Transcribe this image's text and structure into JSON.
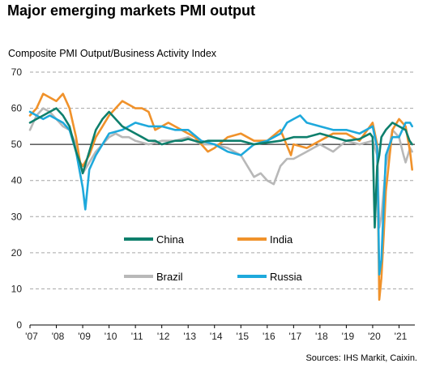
{
  "title": "Major emerging markets PMI output",
  "chart_data": {
    "type": "line",
    "title": "Major emerging markets PMI output",
    "ylabel": "Composite PMI Output/Business Activity Index",
    "source": "Sources: IHS Markit, Caixin.",
    "ylim": [
      0,
      70
    ],
    "xlim": [
      2007.0,
      2021.6
    ],
    "yticks": [
      0,
      10,
      20,
      30,
      40,
      50,
      60,
      70
    ],
    "xticks": [
      {
        "value": 2007,
        "label": "'07"
      },
      {
        "value": 2008,
        "label": "'08"
      },
      {
        "value": 2009,
        "label": "'09"
      },
      {
        "value": 2010,
        "label": "'10"
      },
      {
        "value": 2011,
        "label": "'11"
      },
      {
        "value": 2012,
        "label": "'12"
      },
      {
        "value": 2013,
        "label": "'13"
      },
      {
        "value": 2014,
        "label": "'14"
      },
      {
        "value": 2015,
        "label": "'15"
      },
      {
        "value": 2016,
        "label": "'16"
      },
      {
        "value": 2017,
        "label": "'17"
      },
      {
        "value": 2018,
        "label": "'18"
      },
      {
        "value": 2019,
        "label": "'19"
      },
      {
        "value": 2020,
        "label": "'20"
      },
      {
        "value": 2021,
        "label": "'21"
      }
    ],
    "reference_line": 50,
    "grid": "horizontal dashed",
    "series": [
      {
        "name": "China",
        "color": "#0e7f6c",
        "x": [
          2007.0,
          2007.25,
          2007.5,
          2007.75,
          2008.0,
          2008.25,
          2008.5,
          2008.75,
          2008.9,
          2009.0,
          2009.25,
          2009.5,
          2009.75,
          2010.0,
          2010.25,
          2010.5,
          2010.75,
          2011.0,
          2011.25,
          2011.5,
          2011.75,
          2012.0,
          2012.25,
          2012.5,
          2012.75,
          2013.0,
          2013.25,
          2013.5,
          2013.75,
          2014.0,
          2014.5,
          2015.0,
          2015.5,
          2016.0,
          2016.5,
          2017.0,
          2017.5,
          2018.0,
          2018.5,
          2019.0,
          2019.5,
          2019.9,
          2020.0,
          2020.08,
          2020.17,
          2020.25,
          2020.33,
          2020.5,
          2020.75,
          2021.0,
          2021.25,
          2021.4,
          2021.5
        ],
        "values": [
          56,
          57,
          58,
          59,
          60,
          58,
          55,
          48,
          45,
          42,
          48,
          54,
          57,
          59,
          57,
          55,
          54,
          53,
          52,
          51,
          51,
          50,
          50.5,
          51,
          51,
          51.5,
          51,
          50.5,
          51,
          51,
          51,
          51,
          50,
          50.5,
          51,
          52,
          52,
          53,
          52,
          51,
          51.5,
          53,
          52,
          27,
          44,
          47,
          52,
          54,
          56,
          55,
          54,
          51,
          50
        ]
      },
      {
        "name": "India",
        "color": "#f0922b",
        "x": [
          2007.0,
          2007.25,
          2007.5,
          2007.75,
          2008.0,
          2008.25,
          2008.5,
          2008.75,
          2008.9,
          2009.0,
          2009.25,
          2009.5,
          2009.75,
          2010.0,
          2010.25,
          2010.5,
          2010.75,
          2011.0,
          2011.25,
          2011.5,
          2011.75,
          2012.0,
          2012.25,
          2012.5,
          2012.75,
          2013.0,
          2013.25,
          2013.5,
          2013.75,
          2014.0,
          2014.5,
          2015.0,
          2015.5,
          2016.0,
          2016.5,
          2016.9,
          2017.0,
          2017.5,
          2018.0,
          2018.5,
          2019.0,
          2019.5,
          2020.0,
          2020.17,
          2020.25,
          2020.33,
          2020.42,
          2020.5,
          2020.75,
          2021.0,
          2021.25,
          2021.42,
          2021.5
        ],
        "values": [
          58,
          60,
          64,
          63,
          62,
          64,
          60,
          52,
          45,
          44,
          47,
          52,
          55,
          58,
          60,
          62,
          61,
          60,
          60,
          59,
          54,
          55,
          56,
          55,
          54,
          53,
          52,
          50,
          48,
          49,
          52,
          53,
          51,
          51,
          54,
          47,
          50,
          49,
          51,
          53,
          53,
          51,
          56,
          50,
          7,
          13,
          25,
          37,
          54,
          57,
          55,
          48,
          43
        ]
      },
      {
        "name": "Brazil",
        "color": "#b8b8b8",
        "x": [
          2007.0,
          2007.25,
          2007.5,
          2007.75,
          2008.0,
          2008.25,
          2008.5,
          2008.75,
          2009.0,
          2009.25,
          2009.5,
          2009.75,
          2010.0,
          2010.25,
          2010.5,
          2010.75,
          2011.0,
          2011.5,
          2012.0,
          2012.5,
          2013.0,
          2013.5,
          2014.0,
          2014.5,
          2015.0,
          2015.25,
          2015.5,
          2015.75,
          2016.0,
          2016.25,
          2016.5,
          2016.75,
          2017.0,
          2017.5,
          2018.0,
          2018.5,
          2019.0,
          2019.5,
          2020.0,
          2020.17,
          2020.25,
          2020.33,
          2020.5,
          2020.75,
          2021.0,
          2021.17,
          2021.25,
          2021.42,
          2021.5
        ],
        "values": [
          54,
          58,
          60,
          59,
          57,
          55,
          54,
          50,
          42,
          45,
          48,
          50,
          52,
          53,
          52,
          52,
          51,
          50,
          51,
          51,
          52,
          50,
          50,
          49,
          47,
          44,
          41,
          42,
          40,
          39,
          44,
          46,
          46,
          48,
          50,
          48,
          51,
          50,
          51,
          47,
          27,
          30,
          44,
          54,
          52,
          47,
          45,
          49,
          48
        ]
      },
      {
        "name": "Russia",
        "color": "#1ea9dc",
        "x": [
          2007.0,
          2007.25,
          2007.5,
          2007.75,
          2008.0,
          2008.25,
          2008.5,
          2008.75,
          2009.0,
          2009.1,
          2009.25,
          2009.5,
          2009.75,
          2010.0,
          2010.5,
          2011.0,
          2011.5,
          2012.0,
          2012.5,
          2013.0,
          2013.5,
          2014.0,
          2014.5,
          2015.0,
          2015.5,
          2016.0,
          2016.5,
          2016.75,
          2017.0,
          2017.25,
          2017.5,
          2018.0,
          2018.5,
          2019.0,
          2019.5,
          2020.0,
          2020.17,
          2020.25,
          2020.33,
          2020.5,
          2020.75,
          2021.0,
          2021.25,
          2021.42,
          2021.5
        ],
        "values": [
          59,
          58,
          57,
          58,
          57,
          56,
          54,
          48,
          38,
          32,
          43,
          47,
          50,
          53,
          54,
          56,
          55,
          55,
          54,
          54,
          51,
          50,
          48,
          47,
          50,
          51,
          53,
          56,
          57,
          58,
          56,
          55,
          54,
          54,
          53,
          55,
          49,
          14,
          18,
          47,
          52,
          52,
          56,
          56,
          55
        ]
      }
    ],
    "legend": [
      {
        "name": "China",
        "color": "#0e7f6c"
      },
      {
        "name": "India",
        "color": "#f0922b"
      },
      {
        "name": "Brazil",
        "color": "#b8b8b8"
      },
      {
        "name": "Russia",
        "color": "#1ea9dc"
      }
    ]
  }
}
